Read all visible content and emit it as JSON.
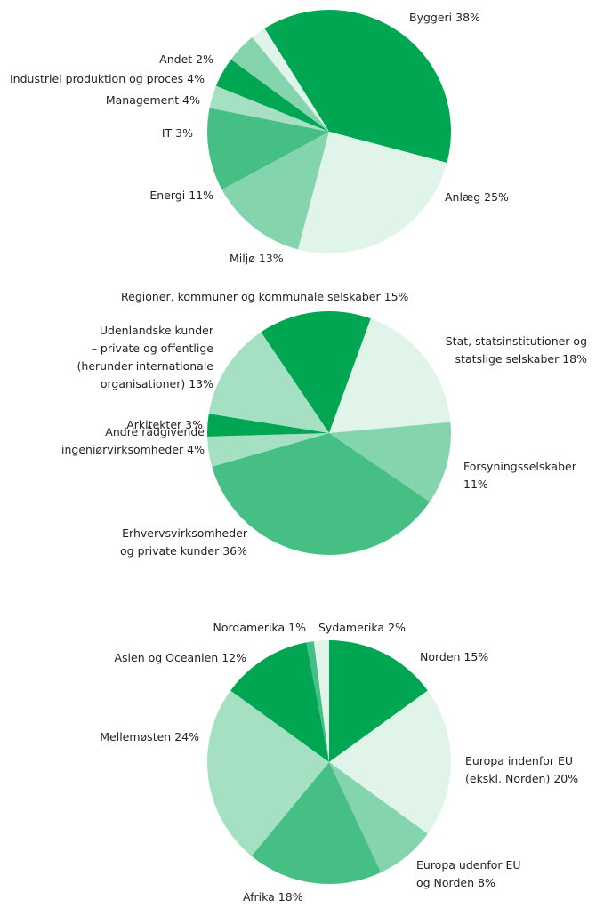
{
  "chart_data": [
    {
      "type": "pie",
      "categories": [
        "Byggeri",
        "Anlæg",
        "Miljø",
        "Energi",
        "IT",
        "Management",
        "Industriel produktion og proces",
        "Andet"
      ],
      "values": [
        38,
        25,
        13,
        11,
        3,
        4,
        4,
        2
      ],
      "value_labels": [
        "38%",
        "25%",
        "13%",
        "11%",
        "3%",
        "4%",
        "4%",
        "2%"
      ],
      "colors": [
        "#00a651",
        "#e1f4ea",
        "#84d4ad",
        "#46bf85",
        "#a5e0c3",
        "#00a651",
        "#84d4ad",
        "#e1f4ea"
      ]
    },
    {
      "type": "pie",
      "categories": [
        "Regioner, kommuner og kommunale selskaber",
        "Stat, statsinstitutioner og\nstatslige selskaber",
        "Forsyningsselskaber",
        "Erhvervsvirksomheder\nog private kunder",
        "Andre rådgivende\ningeniørvirksomheder",
        "Arkitekter",
        "Udenlandske kunder\n– private og offentlige\n(herunder internationale\norganisationer)"
      ],
      "values": [
        15,
        18,
        11,
        36,
        4,
        3,
        13
      ],
      "value_labels": [
        "15%",
        "18%",
        "11%",
        "36%",
        "4%",
        "3%",
        "13%"
      ],
      "colors": [
        "#00a651",
        "#e1f4ea",
        "#84d4ad",
        "#46bf85",
        "#a5e0c3",
        "#00a651",
        "#a5e0c3"
      ]
    },
    {
      "type": "pie",
      "categories": [
        "Norden",
        "Europa indenfor EU\n(ekskl. Norden)",
        "Europa udenfor EU\nog Norden",
        "Afrika",
        "Mellemøsten",
        "Asien og Oceanien",
        "Nordamerika",
        "Sydamerika"
      ],
      "values": [
        15,
        20,
        8,
        18,
        24,
        12,
        1,
        2
      ],
      "value_labels": [
        "15%",
        "20%",
        "8%",
        "18%",
        "24%",
        "12%",
        "1%",
        "2%"
      ],
      "colors": [
        "#00a651",
        "#e1f4ea",
        "#84d4ad",
        "#46bf85",
        "#a5e0c3",
        "#00a651",
        "#46bf85",
        "#e1f4ea"
      ]
    }
  ]
}
